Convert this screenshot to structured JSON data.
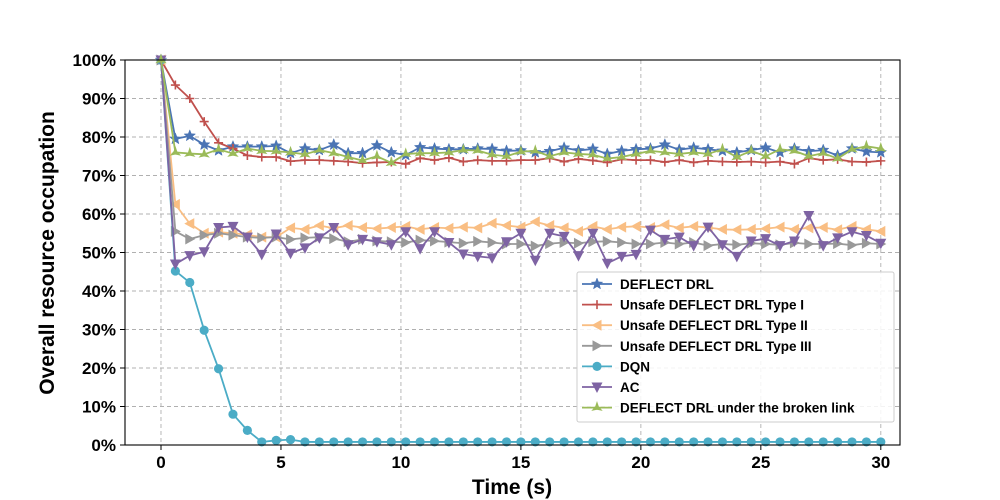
{
  "chart_data": {
    "type": "line",
    "title": "",
    "xlabel": "Time (s)",
    "ylabel": "Overall resource occupation",
    "xlim": [
      -1.5,
      30.8
    ],
    "ylim": [
      0,
      100
    ],
    "xticks": [
      0,
      5,
      10,
      15,
      20,
      25,
      30
    ],
    "xtick_labels": [
      "0",
      "5",
      "10",
      "15",
      "20",
      "25",
      "30"
    ],
    "yticks": [
      0,
      10,
      20,
      30,
      40,
      50,
      60,
      70,
      80,
      90,
      100
    ],
    "ytick_labels": [
      "0%",
      "10%",
      "20%",
      "30%",
      "40%",
      "50%",
      "60%",
      "70%",
      "80%",
      "90%",
      "100%"
    ],
    "grid": true,
    "legend_position": "lower-right",
    "x": [
      0,
      0.6,
      1.2,
      1.8,
      2.4,
      3.0,
      3.6,
      4.2,
      4.8,
      5.4,
      6.0,
      6.6,
      7.2,
      7.8,
      8.4,
      9.0,
      9.6,
      10.2,
      10.8,
      11.4,
      12.0,
      12.6,
      13.2,
      13.8,
      14.4,
      15.0,
      15.6,
      16.2,
      16.8,
      17.4,
      18.0,
      18.6,
      19.2,
      19.8,
      20.4,
      21.0,
      21.6,
      22.2,
      22.8,
      23.4,
      24.0,
      24.6,
      25.2,
      25.8,
      26.4,
      27.0,
      27.6,
      28.2,
      28.8,
      29.4,
      30.0
    ],
    "series": [
      {
        "name": "DEFLECT DRL",
        "color": "#4a74b4",
        "marker": "star",
        "values": [
          100,
          79.5,
          80.3,
          78,
          76.5,
          77.5,
          77.5,
          77.5,
          77.7,
          75.8,
          77.0,
          76.6,
          78.0,
          75.8,
          75.8,
          77.8,
          76.0,
          75.3,
          77.3,
          77.0,
          76.8,
          76.8,
          77.0,
          76.9,
          76.4,
          76.5,
          76.0,
          76.3,
          77.2,
          76.5,
          76.9,
          75.6,
          76.4,
          76.8,
          77.0,
          78.0,
          76.7,
          77.2,
          76.8,
          76.4,
          76.0,
          76.6,
          77.2,
          76.0,
          77.0,
          76.3,
          76.6,
          75.2,
          77.0,
          76.2,
          76.0
        ]
      },
      {
        "name": "Unsafe DEFLECT DRL Type I",
        "color": "#c0504d",
        "marker": "plus",
        "values": [
          100,
          93.5,
          90.0,
          84.0,
          78.5,
          77.0,
          75.2,
          74.8,
          74.8,
          73.7,
          74.0,
          74.0,
          73.8,
          73.6,
          73.2,
          73.4,
          73.5,
          73.0,
          74.5,
          74.0,
          74.6,
          73.6,
          74.0,
          73.8,
          73.8,
          74.0,
          74.0,
          74.5,
          73.6,
          74.3,
          73.9,
          73.4,
          74.2,
          74.0,
          74.0,
          73.5,
          74.0,
          73.4,
          73.8,
          73.6,
          73.5,
          73.6,
          73.4,
          73.6,
          73.0,
          74.5,
          74.0,
          74.2,
          73.6,
          73.5,
          73.8
        ]
      },
      {
        "name": "Unsafe DEFLECT DRL Type II",
        "color": "#f9be83",
        "marker": "triangle-left",
        "values": [
          100,
          62.5,
          57.5,
          55.0,
          55.3,
          55.0,
          54.6,
          54.0,
          54.0,
          56.4,
          56.0,
          57.0,
          56.3,
          57.0,
          56.5,
          56.2,
          56.5,
          56.8,
          56.0,
          56.5,
          56.3,
          56.6,
          56.4,
          57.6,
          57.0,
          56.6,
          58.0,
          57.0,
          56.4,
          55.5,
          56.8,
          56.0,
          56.6,
          56.8,
          56.5,
          57.2,
          56.4,
          56.8,
          56.5,
          56.0,
          55.9,
          56.0,
          56.2,
          56.6,
          56.0,
          56.4,
          56.5,
          55.9,
          56.8,
          56.0,
          55.5
        ]
      },
      {
        "name": "Unsafe DEFLECT DRL Type III",
        "color": "#999999",
        "marker": "triangle-right",
        "values": [
          100,
          55.5,
          53.5,
          54.5,
          55.0,
          54.5,
          54.0,
          53.8,
          54.0,
          53.4,
          53.8,
          54.0,
          53.6,
          52.8,
          53.4,
          53.0,
          52.8,
          52.6,
          53.2,
          53.0,
          52.7,
          52.4,
          52.9,
          52.6,
          52.2,
          52.2,
          51.7,
          52.3,
          52.6,
          52.4,
          52.8,
          52.9,
          52.6,
          52.2,
          52.2,
          52.6,
          52.2,
          52.6,
          51.8,
          52.2,
          52.0,
          52.4,
          52.2,
          52.0,
          52.5,
          52.2,
          52.2,
          52.3,
          51.9,
          52.4,
          52.2
        ]
      },
      {
        "name": "DQN",
        "color": "#4bacc6",
        "marker": "circle",
        "values": [
          100,
          45.2,
          42.2,
          29.8,
          19.8,
          8.0,
          3.8,
          0.8,
          1.2,
          1.4,
          0.8,
          0.8,
          0.8,
          0.8,
          0.8,
          0.8,
          0.8,
          0.8,
          0.8,
          0.8,
          0.8,
          0.8,
          0.8,
          0.8,
          0.8,
          0.8,
          0.8,
          0.8,
          0.8,
          0.8,
          0.8,
          0.8,
          0.8,
          0.8,
          0.8,
          0.8,
          0.8,
          0.8,
          0.8,
          0.8,
          0.8,
          0.8,
          0.8,
          0.8,
          0.8,
          0.8,
          0.8,
          0.8,
          0.8,
          0.8,
          0.8
        ]
      },
      {
        "name": "AC",
        "color": "#7e63a3",
        "marker": "triangle-down",
        "values": [
          100,
          47.0,
          49.2,
          50.2,
          56.5,
          56.8,
          54.0,
          49.5,
          54.8,
          49.8,
          51.2,
          53.8,
          56.5,
          52.0,
          53.4,
          52.8,
          52.0,
          55.4,
          51.0,
          55.4,
          52.6,
          49.6,
          49.0,
          48.6,
          52.8,
          55.0,
          48.0,
          55.0,
          54.2,
          49.2,
          55.0,
          47.2,
          49.0,
          49.5,
          55.8,
          53.4,
          54.0,
          51.8,
          56.6,
          52.0,
          49.0,
          53.0,
          53.6,
          51.8,
          53.0,
          59.6,
          51.8,
          53.8,
          55.4,
          54.4,
          52.4
        ]
      },
      {
        "name": "DEFLECT DRL under the broken link",
        "color": "#9bbb59",
        "marker": "tri-star",
        "values": [
          100,
          76.0,
          75.7,
          75.5,
          76.8,
          75.7,
          77.0,
          76.4,
          76.3,
          76.0,
          75.5,
          76.6,
          75.8,
          74.8,
          73.9,
          75.0,
          73.3,
          75.6,
          75.8,
          75.8,
          76.0,
          76.6,
          76.5,
          75.4,
          75.0,
          76.2,
          76.4,
          75.0,
          76.0,
          75.6,
          75.4,
          74.4,
          74.8,
          75.6,
          76.4,
          76.0,
          75.6,
          76.0,
          75.6,
          76.8,
          74.8,
          76.4,
          75.0,
          76.8,
          76.4,
          75.0,
          75.8,
          74.4,
          76.8,
          77.6,
          77.0
        ]
      }
    ]
  }
}
